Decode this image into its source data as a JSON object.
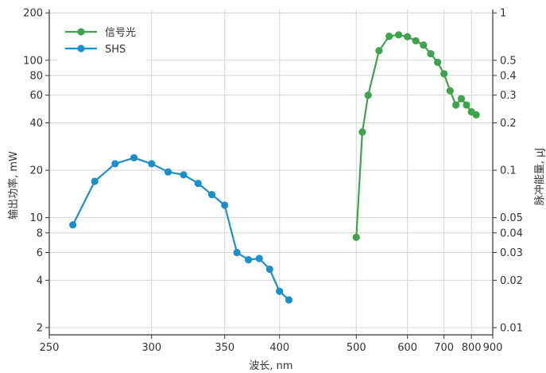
{
  "chart_data": {
    "type": "line",
    "xlabel": "波长, nm",
    "ylabel_left": "输出功率, mW",
    "ylabel_right": "脉冲能量, μJ",
    "x_scale": "reciprocal",
    "x_ticks": [
      250,
      300,
      350,
      400,
      500,
      600,
      700,
      800,
      900
    ],
    "y_scale": "log",
    "ylim_left": [
      1.8,
      210
    ],
    "y_ticks_left": [
      2,
      4,
      6,
      8,
      10,
      20,
      40,
      60,
      80,
      100,
      200
    ],
    "y_ticks_right": [
      "0.01",
      "0.02",
      "0.03",
      "0.04",
      "0.05",
      "0.1",
      "0.2",
      "0.3",
      "0.4",
      "0.5",
      "1"
    ],
    "grid": true,
    "legend_position": "top-left",
    "series": [
      {
        "name": "信号光",
        "color": "#3fa34d",
        "x": [
          500,
          510,
          520,
          540,
          560,
          580,
          600,
          620,
          640,
          660,
          680,
          700,
          720,
          740,
          760,
          780,
          800,
          820
        ],
        "y": [
          7.5,
          35,
          60,
          115,
          142,
          145,
          141,
          133,
          125,
          110,
          97,
          82,
          64,
          52,
          57,
          52,
          47,
          45
        ]
      },
      {
        "name": "SHS",
        "color": "#1b8fc9",
        "x": [
          260,
          270,
          280,
          290,
          300,
          310,
          320,
          330,
          340,
          350,
          360,
          370,
          380,
          390,
          400,
          410
        ],
        "y": [
          9,
          17,
          22,
          24,
          22,
          19.5,
          18.7,
          16.5,
          14,
          12,
          6,
          5.4,
          5.5,
          4.7,
          3.4,
          3.0
        ]
      }
    ]
  }
}
